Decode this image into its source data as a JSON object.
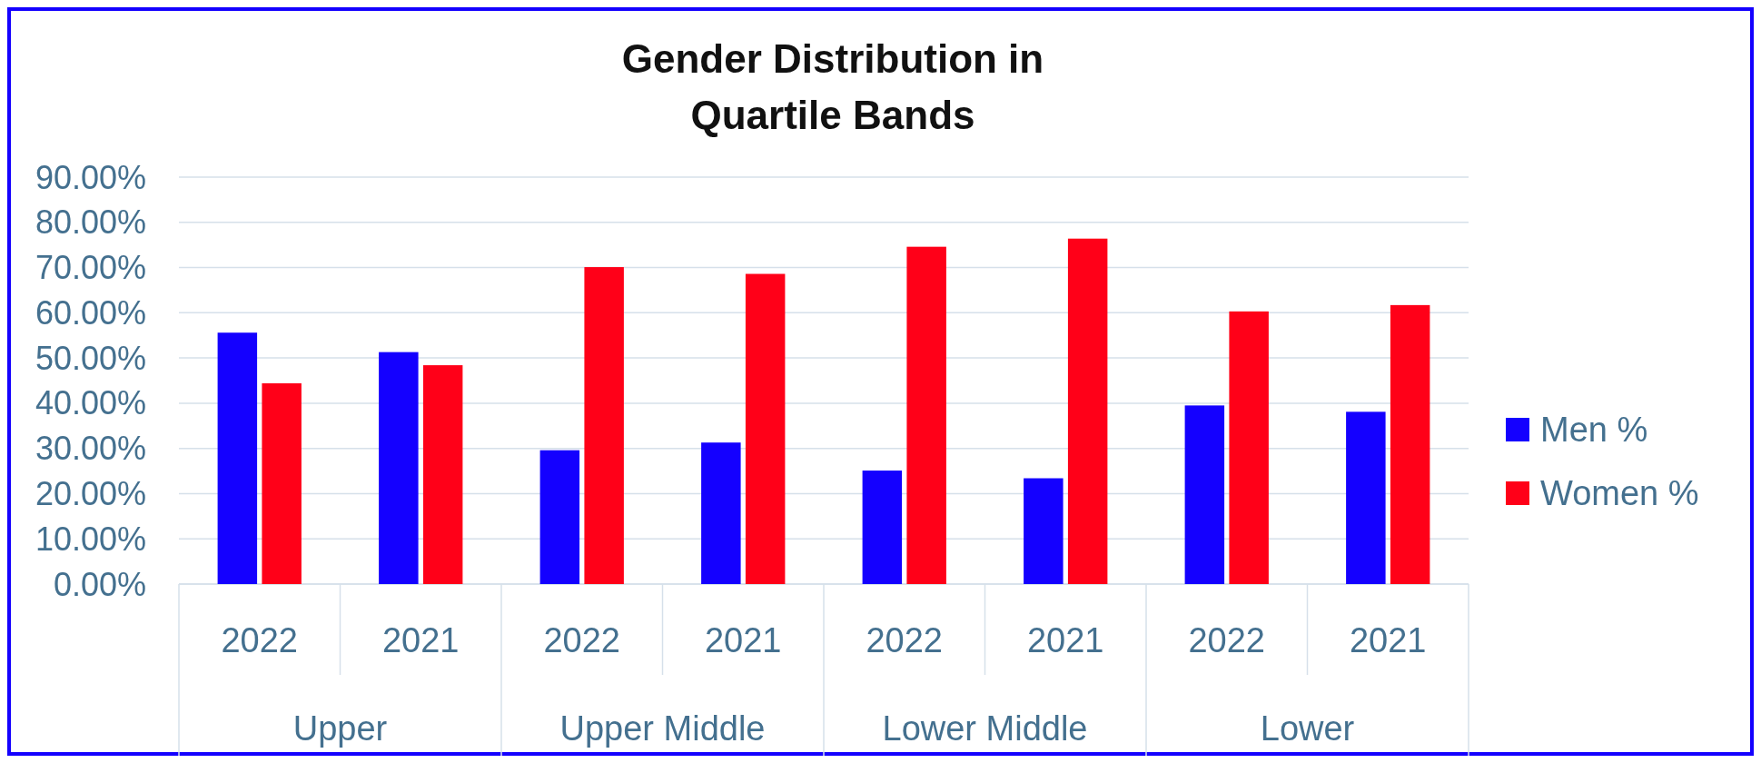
{
  "chart_data": {
    "type": "bar",
    "title": "Gender Distribution in Quartile Bands",
    "categories": [
      "2022",
      "2021",
      "2022",
      "2021",
      "2022",
      "2021",
      "2022",
      "2021"
    ],
    "series": [
      {
        "name": "Men %",
        "color": "#1400ff",
        "values": [
          55.6,
          51.3,
          29.6,
          31.3,
          25.1,
          23.4,
          39.5,
          38.1
        ]
      },
      {
        "name": "Women %",
        "color": "#ff0018",
        "values": [
          44.4,
          48.4,
          70.1,
          68.6,
          74.6,
          76.4,
          60.3,
          61.7
        ]
      }
    ],
    "annotations": [
      "Upper",
      "Upper Middle",
      "Lower Middle",
      "Lower"
    ],
    "ylim": [
      0,
      90
    ],
    "yticks": [
      {
        "value": 0,
        "label": "0.00%"
      },
      {
        "value": 10,
        "label": "10.00%"
      },
      {
        "value": 20,
        "label": "20.00%"
      },
      {
        "value": 30,
        "label": "30.00%"
      },
      {
        "value": 40,
        "label": "40.00%"
      },
      {
        "value": 50,
        "label": "50.00%"
      },
      {
        "value": 60,
        "label": "60.00%"
      },
      {
        "value": 70,
        "label": "70.00%"
      },
      {
        "value": 80,
        "label": "80.00%"
      },
      {
        "value": 90,
        "label": "90.00%"
      }
    ],
    "grid": "y",
    "legend": "right"
  }
}
